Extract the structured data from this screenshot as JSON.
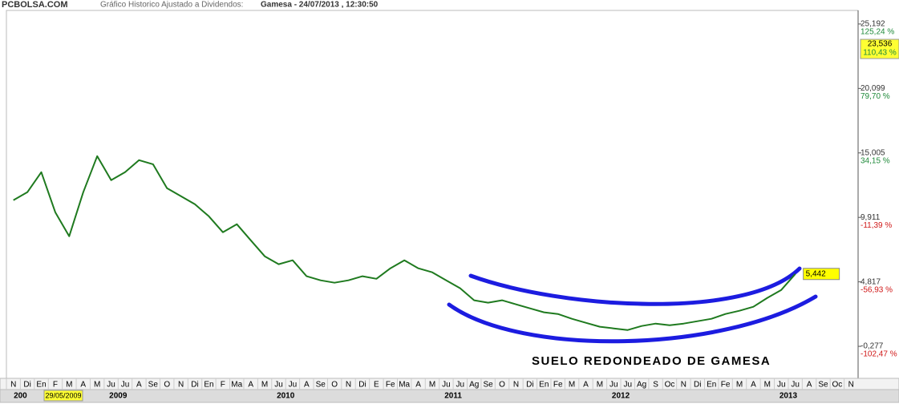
{
  "chart_data": {
    "type": "line",
    "site": "PCBOLSA.COM",
    "subtitle": "Gráfico Historico Ajustado a Dividendos:",
    "title": "Gamesa - 24/07/2013 , 12:30:50",
    "annotation": "SUELO REDONDEADO DE GAMESA",
    "cursor_date": "29/05/2009",
    "cursor_value": {
      "value": 23.536,
      "label": "23,536",
      "percent": "110,43 %"
    },
    "categories": [
      "N",
      "Di",
      "En",
      "F",
      "M",
      "A",
      "M",
      "Ju",
      "Ju",
      "A",
      "Se",
      "O",
      "N",
      "Di",
      "En",
      "F",
      "Ma",
      "A",
      "M",
      "Ju",
      "Ju",
      "A",
      "Se",
      "O",
      "N",
      "Di",
      "E",
      "Fe",
      "Ma",
      "A",
      "M",
      "Ju",
      "Ju",
      "Ag",
      "Se",
      "O",
      "N",
      "Di",
      "En",
      "Fe",
      "M",
      "A",
      "M",
      "Ju",
      "Ju",
      "Ag",
      "S",
      "Oc",
      "N",
      "Di",
      "En",
      "Fe",
      "M",
      "A",
      "M",
      "Ju",
      "Ju",
      "A",
      "Se",
      "Oc",
      "N"
    ],
    "year_labels": [
      "200",
      null,
      null,
      null,
      null,
      null,
      null,
      "2009",
      null,
      null,
      null,
      null,
      null,
      null,
      null,
      null,
      null,
      null,
      null,
      "2010",
      null,
      null,
      null,
      null,
      null,
      null,
      null,
      null,
      null,
      null,
      null,
      "2011",
      null,
      null,
      null,
      null,
      null,
      null,
      null,
      null,
      null,
      null,
      null,
      "2012",
      null,
      null,
      null,
      null,
      null,
      null,
      null,
      null,
      null,
      null,
      null,
      "2013",
      null,
      null,
      null,
      null,
      null
    ],
    "series": [
      {
        "name": "Gamesa",
        "color": "#1f7a1f",
        "values": [
          11.27,
          11.9,
          13.48,
          10.32,
          8.42,
          11.9,
          14.75,
          12.85,
          13.48,
          14.43,
          14.11,
          12.22,
          11.58,
          10.95,
          10.0,
          8.74,
          9.37,
          8.1,
          6.84,
          6.21,
          6.52,
          5.26,
          4.94,
          4.75,
          4.94,
          5.26,
          5.06,
          5.89,
          6.52,
          5.89,
          5.57,
          4.94,
          4.31,
          3.36,
          3.17,
          3.36,
          3.04,
          2.72,
          2.41,
          2.28,
          1.9,
          1.58,
          1.27,
          1.14,
          1.01,
          1.33,
          1.52,
          1.39,
          1.52,
          1.71,
          1.9,
          2.28,
          2.53,
          2.85,
          3.55,
          4.18,
          5.442,
          null,
          null,
          null,
          null
        ],
        "value_labels": [
          null,
          null,
          null,
          null,
          null,
          null,
          null,
          null,
          null,
          null,
          null,
          null,
          null,
          null,
          null,
          null,
          null,
          null,
          null,
          null,
          null,
          null,
          null,
          null,
          null,
          null,
          null,
          null,
          null,
          null,
          null,
          null,
          null,
          null,
          null,
          null,
          null,
          null,
          null,
          null,
          null,
          null,
          null,
          null,
          null,
          null,
          null,
          null,
          null,
          null,
          null,
          null,
          null,
          null,
          null,
          null,
          "5,442",
          null,
          null,
          null,
          null
        ]
      }
    ],
    "ylim": [
      -2.68,
      26.77
    ],
    "yticks": [
      {
        "value": 25.192,
        "label": "25,192"
      },
      {
        "value": 20.099,
        "label": "20,099"
      },
      {
        "value": 15.005,
        "label": "15,005"
      },
      {
        "value": 9.911,
        "label": "9,911"
      },
      {
        "value": 4.817,
        "label": "4,817"
      },
      {
        "value": -0.277,
        "label": "-0,277"
      }
    ],
    "ytick_percents": [
      "125,24 %",
      "79,70 %",
      "34,15 %",
      "-11,39 %",
      "-56,93 %",
      "-102,47 %"
    ],
    "ytick_percent_colors": [
      "#1f8a3a",
      "#1f8a3a",
      "#1f8a3a",
      "#d01818",
      "#d01818",
      "#d01818"
    ],
    "grid": false
  }
}
